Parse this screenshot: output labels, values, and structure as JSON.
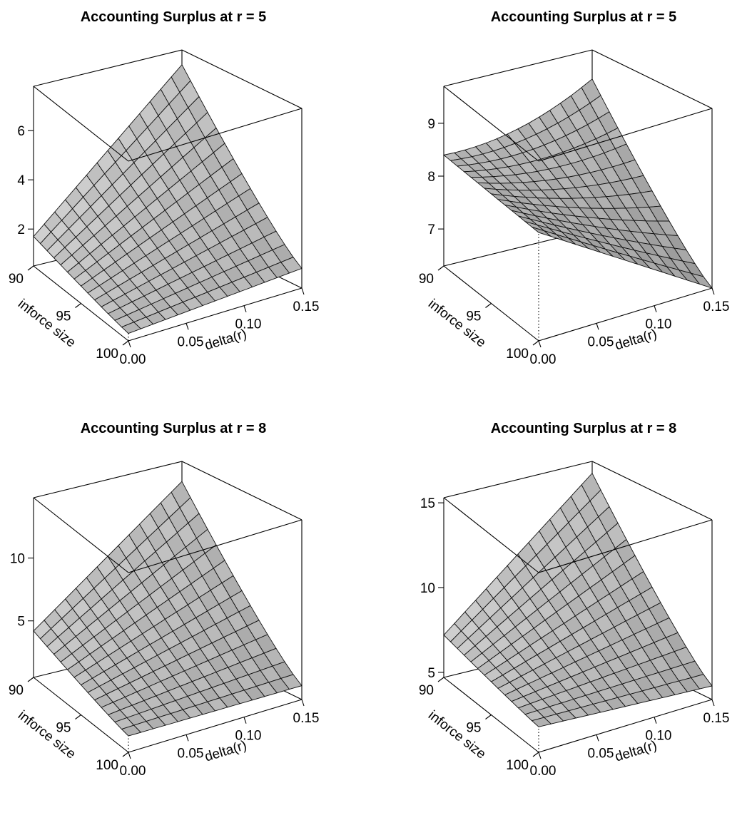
{
  "chart_data": [
    {
      "type": "surface",
      "title": "Accounting Surplus at r = 5",
      "xlabel": "delta(r)",
      "ylabel": "inforce size",
      "x_ticks": [
        "0.00",
        "0.05",
        "0.10",
        "0.15"
      ],
      "y_ticks": [
        "90",
        "95",
        "100"
      ],
      "z_ticks": [
        "2",
        "4",
        "6"
      ],
      "xlim": [
        0,
        0.15
      ],
      "ylim": [
        90,
        100
      ],
      "zlim": [
        0.5,
        7.8
      ],
      "corner_values": {
        "x0_y90": 1.7,
        "x15_y90": 7.2,
        "x0_y100": 0.8,
        "x15_y100": 1.3
      },
      "surface_color": "#bdbdbd"
    },
    {
      "type": "surface",
      "title": "Accounting Surplus at r = 5",
      "xlabel": "delta(r)",
      "ylabel": "inforce size",
      "x_ticks": [
        "0.00",
        "0.05",
        "0.10",
        "0.15"
      ],
      "y_ticks": [
        "90",
        "95",
        "100"
      ],
      "z_ticks": [
        "7",
        "8",
        "9"
      ],
      "xlim": [
        0,
        0.15
      ],
      "ylim": [
        90,
        100
      ],
      "zlim": [
        6.3,
        9.7
      ],
      "corner_values": {
        "x0_y90": 8.4,
        "x15_y90": 9.15,
        "x0_y100": 8.35,
        "x15_y100": 6.3
      },
      "surface_color": "#bdbdbd"
    },
    {
      "type": "surface",
      "title": "Accounting Surplus at r = 8",
      "xlabel": "delta(r)",
      "ylabel": "inforce size",
      "x_ticks": [
        "0.00",
        "0.05",
        "0.10",
        "0.15"
      ],
      "y_ticks": [
        "90",
        "95",
        "100"
      ],
      "z_ticks": [
        "5",
        "10"
      ],
      "xlim": [
        0,
        0.15
      ],
      "ylim": [
        90,
        100
      ],
      "zlim": [
        0.5,
        14.8
      ],
      "corner_values": {
        "x0_y90": 4.2,
        "x15_y90": 13.2,
        "x0_y100": 1.8,
        "x15_y100": 1.6
      },
      "surface_color": "#bdbdbd"
    },
    {
      "type": "surface",
      "title": "Accounting Surplus at r = 8",
      "xlabel": "delta(r)",
      "ylabel": "inforce size",
      "x_ticks": [
        "0.00",
        "0.05",
        "0.10",
        "0.15"
      ],
      "y_ticks": [
        "90",
        "95",
        "100"
      ],
      "z_ticks": [
        "5",
        "10",
        "15"
      ],
      "xlim": [
        0,
        0.15
      ],
      "ylim": [
        90,
        100
      ],
      "zlim": [
        4.7,
        15.3
      ],
      "corner_values": {
        "x0_y90": 7.2,
        "x15_y90": 14.6,
        "x0_y100": 6.2,
        "x15_y100": 5.5
      },
      "surface_color": "#bdbdbd"
    }
  ]
}
